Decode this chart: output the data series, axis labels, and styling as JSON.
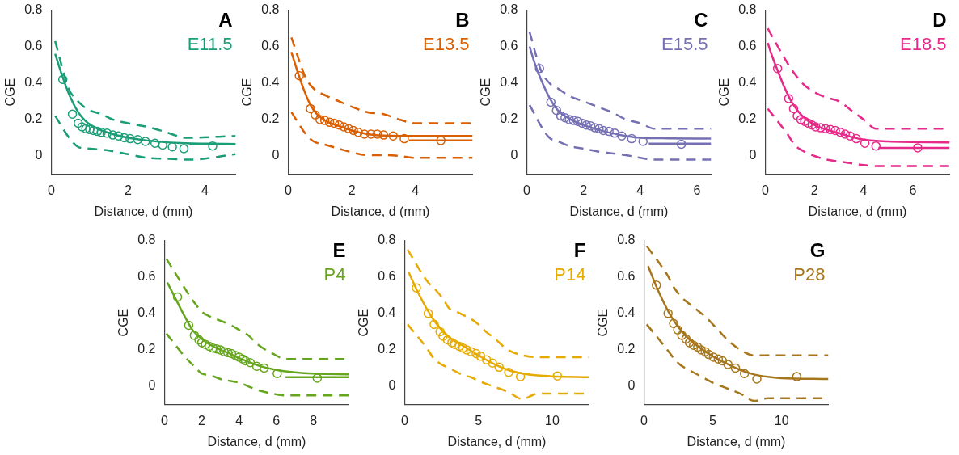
{
  "chart_data": [
    {
      "type": "line",
      "title": "A",
      "subtitle": "E11.5",
      "xlabel": "Distance, d (mm)",
      "ylabel": "CGE",
      "xlim": [
        0,
        4.8
      ],
      "xticks": [
        0,
        2,
        4
      ],
      "ylim": [
        -0.1,
        0.8
      ],
      "yticks": [
        0,
        0.2,
        0.4,
        0.6,
        0.8
      ],
      "series": [
        {
          "type": "line",
          "line_style": "dashed",
          "color": "#1b9e77",
          "x": [
            0.1,
            0.45,
            0.65,
            0.85,
            1.0,
            1.3,
            1.6,
            2,
            2.5,
            3.0,
            3.5,
            4.8
          ],
          "values": [
            0.63,
            0.37,
            0.31,
            0.27,
            0.25,
            0.23,
            0.2,
            0.18,
            0.16,
            0.13,
            0.1,
            0.11
          ]
        },
        {
          "type": "line",
          "line_style": "dashed",
          "color": "#1b9e77",
          "x": [
            0.1,
            0.5,
            0.7,
            1.0,
            1.5,
            2,
            2.5,
            3,
            3.6,
            4.8
          ],
          "values": [
            0.22,
            0.09,
            0.05,
            0.04,
            0.03,
            0.01,
            -0.01,
            -0.015,
            -0.02,
            0.01
          ]
        },
        {
          "type": "line",
          "line_style": "solid",
          "color": "#1b9e77",
          "x": [
            3.6,
            4.8
          ],
          "values": [
            0.065,
            0.065
          ]
        },
        {
          "type": "line",
          "line_style": "solid",
          "color": "#1b9e77",
          "x": [
            0.1,
            0.3,
            0.5,
            0.7,
            0.9,
            1.2,
            1.6,
            2,
            2.5,
            3,
            3.5,
            4,
            4.8
          ],
          "values": [
            0.56,
            0.43,
            0.32,
            0.24,
            0.19,
            0.15,
            0.12,
            0.1,
            0.085,
            0.075,
            0.07,
            0.068,
            0.066
          ]
        },
        {
          "type": "scatter",
          "marker": "circle",
          "color": "#1b9e77",
          "x": [
            0.3,
            0.55,
            0.7,
            0.8,
            0.9,
            1.0,
            1.1,
            1.2,
            1.3,
            1.45,
            1.6,
            1.75,
            1.9,
            2.05,
            2.25,
            2.45,
            2.7,
            2.9,
            3.15,
            3.45,
            4.2
          ],
          "values": [
            0.42,
            0.23,
            0.18,
            0.16,
            0.15,
            0.145,
            0.14,
            0.135,
            0.13,
            0.125,
            0.115,
            0.11,
            0.1,
            0.095,
            0.09,
            0.08,
            0.07,
            0.06,
            0.05,
            0.04,
            0.055
          ]
        }
      ]
    },
    {
      "type": "line",
      "title": "B",
      "subtitle": "E13.5",
      "xlabel": "Distance, d (mm)",
      "ylabel": "CGE",
      "xlim": [
        0,
        5.8
      ],
      "xticks": [
        0,
        2,
        4
      ],
      "ylim": [
        -0.1,
        0.8
      ],
      "yticks": [
        0,
        0.2,
        0.4,
        0.6,
        0.8
      ],
      "series": [
        {
          "type": "line",
          "line_style": "dashed",
          "color": "#d95f02",
          "x": [
            0.1,
            0.55,
            0.8,
            1.2,
            1.6,
            2,
            2.5,
            3,
            3.5,
            4,
            5.8
          ],
          "values": [
            0.65,
            0.43,
            0.37,
            0.33,
            0.3,
            0.27,
            0.24,
            0.23,
            0.2,
            0.18,
            0.18
          ]
        },
        {
          "type": "line",
          "line_style": "dashed",
          "color": "#d95f02",
          "x": [
            0.1,
            0.6,
            0.8,
            1.2,
            1.6,
            2,
            2.5,
            3,
            3.5,
            4,
            5.8
          ],
          "values": [
            0.24,
            0.11,
            0.08,
            0.06,
            0.04,
            0.02,
            0.005,
            0.005,
            0,
            -0.01,
            -0.01
          ]
        },
        {
          "type": "line",
          "line_style": "solid",
          "color": "#d95f02",
          "x": [
            3.8,
            5.8
          ],
          "values": [
            0.085,
            0.085
          ]
        },
        {
          "type": "line",
          "line_style": "solid",
          "color": "#d95f02",
          "x": [
            0.1,
            0.3,
            0.5,
            0.7,
            0.9,
            1.2,
            1.6,
            2,
            2.5,
            3,
            4,
            5.8
          ],
          "values": [
            0.57,
            0.46,
            0.36,
            0.28,
            0.23,
            0.19,
            0.165,
            0.14,
            0.12,
            0.112,
            0.11,
            0.11
          ]
        },
        {
          "type": "scatter",
          "marker": "circle",
          "color": "#d95f02",
          "x": [
            0.35,
            0.7,
            0.85,
            1.0,
            1.15,
            1.3,
            1.45,
            1.6,
            1.75,
            1.9,
            2.05,
            2.2,
            2.4,
            2.6,
            2.8,
            3.0,
            3.3,
            3.65,
            4.8
          ],
          "values": [
            0.44,
            0.26,
            0.225,
            0.2,
            0.195,
            0.185,
            0.18,
            0.17,
            0.16,
            0.15,
            0.14,
            0.13,
            0.12,
            0.12,
            0.12,
            0.115,
            0.11,
            0.095,
            0.085
          ]
        }
      ]
    },
    {
      "type": "line",
      "title": "C",
      "subtitle": "E15.5",
      "xlabel": "Distance, d (mm)",
      "ylabel": "CGE",
      "xlim": [
        0,
        6.5
      ],
      "xticks": [
        0,
        2,
        4,
        6
      ],
      "ylim": [
        -0.1,
        0.8
      ],
      "yticks": [
        0,
        0.2,
        0.4,
        0.6,
        0.8
      ],
      "series": [
        {
          "type": "line",
          "line_style": "dashed",
          "color": "#7570b3",
          "x": [
            0.1,
            0.5,
            0.8,
            1.1,
            1.5,
            2,
            2.5,
            3,
            3.5,
            4,
            4.5,
            6.5
          ],
          "values": [
            0.68,
            0.47,
            0.4,
            0.37,
            0.33,
            0.3,
            0.27,
            0.24,
            0.2,
            0.18,
            0.15,
            0.15
          ]
        },
        {
          "type": "line",
          "line_style": "dashed",
          "color": "#7570b3",
          "x": [
            0.1,
            0.6,
            0.8,
            1.1,
            1.5,
            2,
            2.5,
            3,
            3.5,
            4,
            4.5,
            6.5
          ],
          "values": [
            0.28,
            0.14,
            0.1,
            0.08,
            0.055,
            0.04,
            0.025,
            0.015,
            0.005,
            -0.01,
            -0.02,
            -0.02
          ]
        },
        {
          "type": "line",
          "line_style": "solid",
          "color": "#7570b3",
          "x": [
            4.3,
            6.5
          ],
          "values": [
            0.068,
            0.068
          ]
        },
        {
          "type": "line",
          "line_style": "solid",
          "color": "#7570b3",
          "x": [
            0.1,
            0.3,
            0.5,
            0.8,
            1.1,
            1.5,
            2,
            2.5,
            3,
            3.5,
            4,
            5,
            6.5
          ],
          "values": [
            0.6,
            0.5,
            0.42,
            0.32,
            0.25,
            0.205,
            0.17,
            0.145,
            0.125,
            0.11,
            0.1,
            0.097,
            0.095
          ]
        },
        {
          "type": "scatter",
          "marker": "circle",
          "color": "#7570b3",
          "x": [
            0.45,
            0.85,
            1.05,
            1.2,
            1.35,
            1.5,
            1.65,
            1.8,
            1.95,
            2.1,
            2.25,
            2.4,
            2.55,
            2.7,
            2.9,
            3.1,
            3.35,
            3.7,
            4.1,
            5.45
          ],
          "values": [
            0.48,
            0.295,
            0.25,
            0.22,
            0.21,
            0.2,
            0.195,
            0.19,
            0.18,
            0.17,
            0.165,
            0.155,
            0.15,
            0.14,
            0.135,
            0.125,
            0.11,
            0.095,
            0.08,
            0.065
          ]
        }
      ]
    },
    {
      "type": "line",
      "title": "D",
      "subtitle": "E18.5",
      "xlabel": "Distance, d (mm)",
      "ylabel": "CGE",
      "xlim": [
        0,
        7.5
      ],
      "xticks": [
        0,
        2,
        4,
        6
      ],
      "ylim": [
        -0.1,
        0.8
      ],
      "yticks": [
        0,
        0.2,
        0.4,
        0.6,
        0.8
      ],
      "series": [
        {
          "type": "line",
          "line_style": "dashed",
          "color": "#e7298a",
          "x": [
            0.1,
            0.9,
            1.2,
            1.5,
            2,
            2.5,
            3,
            3.5,
            4,
            4.5,
            7.5
          ],
          "values": [
            0.7,
            0.51,
            0.45,
            0.4,
            0.35,
            0.32,
            0.3,
            0.25,
            0.2,
            0.15,
            0.15
          ]
        },
        {
          "type": "line",
          "line_style": "dashed",
          "color": "#e7298a",
          "x": [
            0.1,
            0.9,
            1.2,
            1.5,
            2,
            2.5,
            3,
            3.5,
            4,
            4.5,
            7.5
          ],
          "values": [
            0.26,
            0.12,
            0.06,
            0.03,
            0.0,
            -0.02,
            -0.03,
            -0.04,
            -0.05,
            -0.055,
            -0.055
          ]
        },
        {
          "type": "line",
          "line_style": "solid",
          "color": "#e7298a",
          "x": [
            4.6,
            7.5
          ],
          "values": [
            0.045,
            0.045
          ]
        },
        {
          "type": "line",
          "line_style": "solid",
          "color": "#e7298a",
          "x": [
            0.1,
            0.3,
            0.5,
            0.8,
            1.1,
            1.5,
            2,
            2.5,
            3,
            3.5,
            4,
            5,
            7.5
          ],
          "values": [
            0.62,
            0.54,
            0.47,
            0.37,
            0.29,
            0.22,
            0.17,
            0.145,
            0.125,
            0.105,
            0.09,
            0.08,
            0.075
          ]
        },
        {
          "type": "scatter",
          "marker": "circle",
          "color": "#e7298a",
          "x": [
            0.5,
            0.95,
            1.15,
            1.3,
            1.45,
            1.6,
            1.75,
            1.9,
            2.05,
            2.25,
            2.45,
            2.65,
            2.85,
            3.05,
            3.25,
            3.45,
            3.7,
            4.05,
            4.5,
            6.2
          ],
          "values": [
            0.48,
            0.315,
            0.26,
            0.22,
            0.2,
            0.19,
            0.18,
            0.17,
            0.16,
            0.155,
            0.15,
            0.145,
            0.14,
            0.13,
            0.12,
            0.11,
            0.095,
            0.07,
            0.055,
            0.045
          ]
        }
      ]
    },
    {
      "type": "line",
      "title": "E",
      "subtitle": "P4",
      "xlabel": "Distance, d (mm)",
      "ylabel": "CGE",
      "xlim": [
        0,
        9.9
      ],
      "xticks": [
        0,
        2,
        4,
        6,
        8
      ],
      "ylim": [
        -0.1,
        0.8
      ],
      "yticks": [
        0,
        0.2,
        0.4,
        0.6,
        0.8
      ],
      "series": [
        {
          "type": "line",
          "line_style": "dashed",
          "color": "#66a61e",
          "x": [
            0.1,
            1.2,
            1.6,
            2,
            2.5,
            3,
            3.5,
            4,
            4.5,
            5,
            5.8,
            6.5,
            9.9
          ],
          "values": [
            0.7,
            0.52,
            0.46,
            0.41,
            0.38,
            0.36,
            0.34,
            0.31,
            0.28,
            0.23,
            0.18,
            0.15,
            0.15
          ]
        },
        {
          "type": "line",
          "line_style": "dashed",
          "color": "#66a61e",
          "x": [
            0.1,
            1.2,
            1.6,
            2,
            2.5,
            3,
            3.5,
            4,
            4.5,
            5,
            5.8,
            6.5,
            9.9
          ],
          "values": [
            0.29,
            0.15,
            0.11,
            0.07,
            0.06,
            0.04,
            0.03,
            0.02,
            0.0,
            -0.02,
            -0.04,
            -0.05,
            -0.05
          ]
        },
        {
          "type": "line",
          "line_style": "solid",
          "color": "#66a61e",
          "x": [
            6.5,
            9.9
          ],
          "values": [
            0.05,
            0.05
          ]
        },
        {
          "type": "line",
          "line_style": "solid",
          "color": "#66a61e",
          "x": [
            0.15,
            0.5,
            1,
            1.5,
            2,
            2.5,
            3,
            3.5,
            4,
            4.5,
            5,
            6,
            7,
            8,
            9.9
          ],
          "values": [
            0.57,
            0.5,
            0.4,
            0.31,
            0.26,
            0.225,
            0.2,
            0.18,
            0.155,
            0.135,
            0.115,
            0.09,
            0.077,
            0.07,
            0.066
          ]
        },
        {
          "type": "scatter",
          "marker": "circle",
          "color": "#66a61e",
          "x": [
            0.7,
            1.3,
            1.6,
            1.85,
            2.0,
            2.2,
            2.4,
            2.6,
            2.8,
            3.0,
            3.2,
            3.4,
            3.6,
            3.8,
            4.0,
            4.2,
            4.35,
            4.6,
            4.95,
            5.35,
            6.05,
            8.2
          ],
          "values": [
            0.49,
            0.335,
            0.28,
            0.255,
            0.24,
            0.23,
            0.22,
            0.21,
            0.205,
            0.2,
            0.19,
            0.185,
            0.18,
            0.17,
            0.16,
            0.15,
            0.14,
            0.13,
            0.11,
            0.1,
            0.07,
            0.045
          ]
        }
      ]
    },
    {
      "type": "line",
      "title": "F",
      "subtitle": "P14",
      "xlabel": "Distance, d (mm)",
      "ylabel": "CGE",
      "xlim": [
        0,
        12.5
      ],
      "xticks": [
        0,
        5,
        10
      ],
      "ylim": [
        -0.1,
        0.8
      ],
      "yticks": [
        0,
        0.2,
        0.4,
        0.6,
        0.8
      ],
      "series": [
        {
          "type": "line",
          "line_style": "dashed",
          "color": "#e6ab02",
          "x": [
            0.2,
            1.5,
            2.2,
            2.6,
            3,
            3.5,
            4,
            4.5,
            5,
            5.5,
            6,
            7,
            8,
            9,
            12.5
          ],
          "values": [
            0.75,
            0.58,
            0.52,
            0.48,
            0.43,
            0.41,
            0.39,
            0.37,
            0.34,
            0.3,
            0.27,
            0.2,
            0.17,
            0.16,
            0.16
          ]
        },
        {
          "type": "line",
          "line_style": "dashed",
          "color": "#e6ab02",
          "x": [
            0.2,
            1.5,
            2,
            2.5,
            3,
            3.5,
            4,
            4.5,
            5,
            6,
            7,
            8,
            9,
            12.5
          ],
          "values": [
            0.34,
            0.21,
            0.15,
            0.12,
            0.1,
            0.08,
            0.06,
            0.05,
            0.03,
            0.0,
            -0.03,
            -0.07,
            -0.04,
            -0.04
          ]
        },
        {
          "type": "line",
          "line_style": "solid",
          "color": "#e6ab02",
          "x": [
            0.25,
            1,
            2,
            3,
            4,
            5,
            6,
            7,
            8,
            9,
            10,
            12.5
          ],
          "values": [
            0.63,
            0.5,
            0.36,
            0.27,
            0.22,
            0.17,
            0.125,
            0.09,
            0.07,
            0.06,
            0.055,
            0.05
          ]
        },
        {
          "type": "scatter",
          "marker": "circle",
          "color": "#e6ab02",
          "x": [
            0.8,
            1.6,
            2.0,
            2.4,
            2.6,
            2.9,
            3.2,
            3.4,
            3.7,
            3.95,
            4.2,
            4.5,
            4.85,
            5.15,
            5.55,
            5.95,
            6.4,
            7.05,
            7.85,
            10.35
          ],
          "values": [
            0.54,
            0.4,
            0.34,
            0.3,
            0.275,
            0.255,
            0.24,
            0.23,
            0.22,
            0.21,
            0.2,
            0.19,
            0.18,
            0.165,
            0.145,
            0.128,
            0.105,
            0.077,
            0.053,
            0.057
          ]
        }
      ]
    },
    {
      "type": "line",
      "title": "G",
      "subtitle": "P28",
      "xlabel": "Distance, d (mm)",
      "ylabel": "CGE",
      "xlim": [
        0,
        13.4
      ],
      "xticks": [
        0,
        5,
        10
      ],
      "ylim": [
        -0.1,
        0.8
      ],
      "yticks": [
        0,
        0.2,
        0.4,
        0.6,
        0.8
      ],
      "series": [
        {
          "type": "line",
          "line_style": "dashed",
          "color": "#a6761d",
          "x": [
            0.2,
            1.7,
            2.2,
            2.6,
            3,
            3.5,
            4,
            4.5,
            5,
            5.5,
            6,
            7,
            8,
            9,
            13.4
          ],
          "values": [
            0.77,
            0.61,
            0.54,
            0.5,
            0.47,
            0.44,
            0.41,
            0.38,
            0.34,
            0.3,
            0.26,
            0.2,
            0.17,
            0.17,
            0.17
          ]
        },
        {
          "type": "line",
          "line_style": "dashed",
          "color": "#a6761d",
          "x": [
            0.2,
            1.7,
            2.2,
            2.6,
            3,
            3.5,
            4,
            4.5,
            5,
            6,
            7,
            8,
            9,
            13.4
          ],
          "values": [
            0.34,
            0.2,
            0.15,
            0.12,
            0.1,
            0.08,
            0.06,
            0.04,
            0.02,
            -0.01,
            -0.04,
            -0.08,
            -0.065,
            -0.065
          ]
        },
        {
          "type": "line",
          "line_style": "solid",
          "color": "#a6761d",
          "x": [
            0.3,
            1,
            2,
            3,
            4,
            5,
            6,
            7,
            8,
            9,
            10,
            13.4
          ],
          "values": [
            0.66,
            0.53,
            0.38,
            0.28,
            0.215,
            0.165,
            0.125,
            0.09,
            0.065,
            0.052,
            0.045,
            0.04
          ]
        },
        {
          "type": "scatter",
          "marker": "circle",
          "color": "#a6761d",
          "x": [
            0.9,
            1.75,
            2.15,
            2.45,
            2.75,
            3.05,
            3.3,
            3.6,
            3.9,
            4.15,
            4.45,
            4.7,
            5.05,
            5.4,
            5.7,
            6.1,
            6.65,
            7.3,
            8.2,
            11.1
          ],
          "values": [
            0.555,
            0.4,
            0.345,
            0.31,
            0.28,
            0.26,
            0.24,
            0.225,
            0.215,
            0.2,
            0.19,
            0.175,
            0.16,
            0.15,
            0.14,
            0.12,
            0.1,
            0.07,
            0.04,
            0.053
          ]
        }
      ]
    }
  ]
}
